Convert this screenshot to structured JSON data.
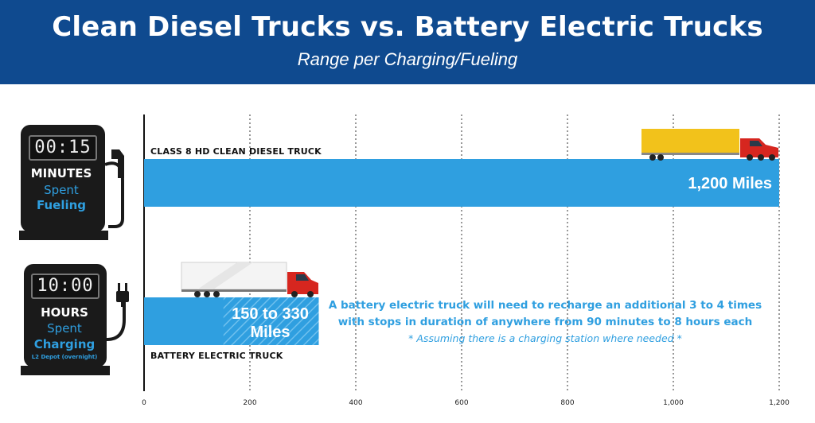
{
  "header": {
    "title": "Clean Diesel Trucks vs. Battery Electric Trucks",
    "subtitle": "Range per Charging/Fueling"
  },
  "pumps": [
    {
      "display": "00:15",
      "line1": "MINUTES",
      "line2": "Spent",
      "line3": "Fueling",
      "line4": ""
    },
    {
      "display": "10:00",
      "line1": "HOURS",
      "line2": "Spent",
      "line3": "Charging",
      "line4": "L2 Depot (overnight)"
    }
  ],
  "note": {
    "line1": "A battery electric truck will need to recharge an additional 3 to 4 times",
    "line2": "with stops in duration of anywhere from 90 minutes to 8 hours each",
    "footnote": "* Assuming there is a charging station where needed *"
  },
  "colors": {
    "header": "#0f4a8f",
    "bar": "#2f9fe0",
    "pump": "#1a1a1a"
  },
  "icons": [
    "diesel-truck-icon",
    "electric-truck-icon",
    "fuel-nozzle-icon",
    "electric-plug-icon"
  ],
  "chart_data": {
    "type": "bar",
    "orientation": "horizontal",
    "title": "Clean Diesel Trucks vs. Battery Electric Trucks",
    "subtitle": "Range per Charging/Fueling",
    "xlim": [
      0,
      1200
    ],
    "ticks": [
      0,
      200,
      400,
      600,
      800,
      1000,
      1200
    ],
    "tick_labels": [
      "0",
      "200",
      "400",
      "600",
      "800",
      "1,000",
      "1,200"
    ],
    "grid": "vertical-dotted",
    "bars": [
      {
        "category": "CLASS 8 HD CLEAN DIESEL TRUCK",
        "value": 1200,
        "label": "1,200 Miles"
      },
      {
        "category": "BATTERY ELECTRIC TRUCK",
        "range": [
          150,
          330
        ],
        "value": 330,
        "label": "150 to 330 Miles"
      }
    ]
  }
}
